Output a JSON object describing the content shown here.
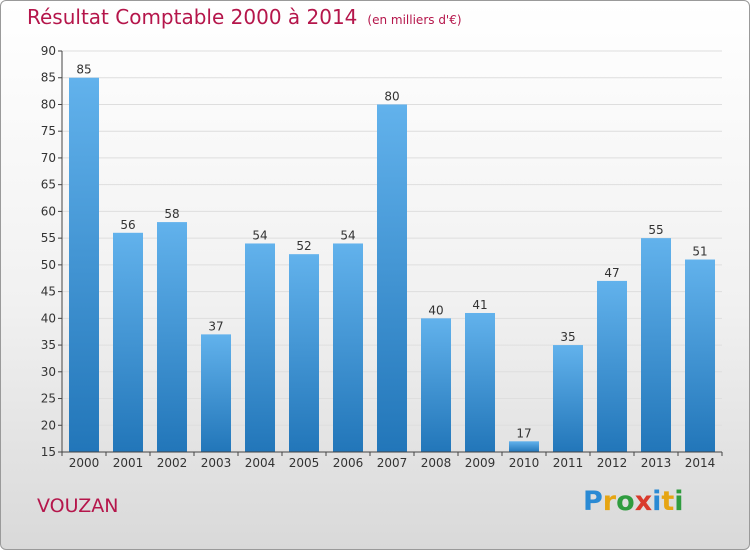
{
  "title": "Résultat Comptable 2000 à 2014",
  "unit_label": "(en milliers d'€)",
  "commune": "VOUZAN",
  "logo_text": "Proxiti",
  "colors": {
    "title": "#b5164b",
    "bar_top": "#62b2ec",
    "bar_bottom": "#2276b9"
  },
  "chart_data": {
    "type": "bar",
    "title": "Résultat Comptable 2000 à 2014",
    "subtitle": "(en milliers d'€)",
    "categories": [
      "2000",
      "2001",
      "2002",
      "2003",
      "2004",
      "2005",
      "2006",
      "2007",
      "2008",
      "2009",
      "2010",
      "2011",
      "2012",
      "2013",
      "2014"
    ],
    "values": [
      85,
      56,
      58,
      37,
      54,
      52,
      54,
      80,
      40,
      41,
      17,
      35,
      47,
      55,
      51
    ],
    "ylim": [
      15,
      90
    ],
    "yticks": [
      15,
      20,
      25,
      30,
      35,
      40,
      45,
      50,
      55,
      60,
      65,
      70,
      75,
      80,
      85,
      90
    ],
    "grid": true,
    "data_labels": true
  }
}
